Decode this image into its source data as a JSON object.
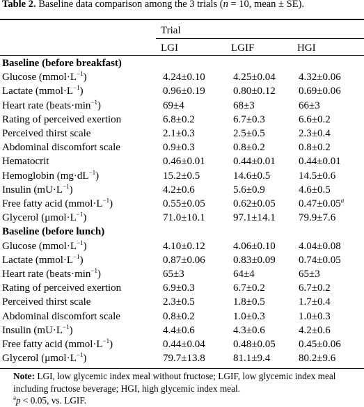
{
  "caption": {
    "label": "Table 2.",
    "text_before_n": " Baseline data comparison among the 3 trials (",
    "n_symbol": "n",
    "text_after_n": " = 10, mean ± SE)."
  },
  "header": {
    "group": "Trial",
    "columns": [
      "LGI",
      "LGIF",
      "HGI"
    ]
  },
  "rows": [
    {
      "label": "Baseline (before breakfast)",
      "section": true,
      "values": [
        "",
        "",
        ""
      ]
    },
    {
      "label": "Glucose (mmol·L",
      "sup": "−1",
      "tail": ")",
      "values": [
        "4.24±0.10",
        "4.25±0.04",
        "4.32±0.06"
      ]
    },
    {
      "label": "Lactate (mmol·L",
      "sup": "−1",
      "tail": ")",
      "values": [
        "0.96±0.19",
        "0.80±0.12",
        "0.69±0.06"
      ]
    },
    {
      "label": "Heart rate (beats·min",
      "sup": "−1",
      "tail": ")",
      "values": [
        "69±4",
        "68±3",
        "66±3"
      ]
    },
    {
      "label": "Rating of perceived exertion",
      "values": [
        "6.8±0.2",
        "6.7±0.3",
        "6.6±0.2"
      ]
    },
    {
      "label": "Perceived thirst scale",
      "values": [
        "2.1±0.3",
        "2.5±0.5",
        "2.3±0.4"
      ]
    },
    {
      "label": "Abdominal discomfort scale",
      "values": [
        "0.9±0.3",
        "0.8±0.2",
        "0.8±0.2"
      ]
    },
    {
      "label": "Hematocrit",
      "values": [
        "0.46±0.01",
        "0.44±0.01",
        "0.44±0.01"
      ]
    },
    {
      "label": "Hemoglobin (mg·dL",
      "sup": "−1",
      "tail": ")",
      "values": [
        "15.2±0.5",
        "14.6±0.5",
        "14.5±0.6"
      ]
    },
    {
      "label": "Insulin (mU·L",
      "sup": "−1",
      "tail": ")",
      "values": [
        "4.2±0.6",
        "5.6±0.9",
        "4.6±0.5"
      ]
    },
    {
      "label": "Free fatty acid (mmol·L",
      "sup": "−1",
      "tail": ")",
      "values": [
        "0.55±0.05",
        "0.62±0.05",
        "0.47±0.05"
      ],
      "value_sup": [
        "",
        "",
        "a"
      ]
    },
    {
      "label": "Glycerol (μmol·L",
      "sup": "−1",
      "tail": ")",
      "values": [
        "71.0±10.1",
        "97.1±14.1",
        "79.9±7.6"
      ]
    },
    {
      "label": "Baseline (before lunch)",
      "section": true,
      "values": [
        "",
        "",
        ""
      ]
    },
    {
      "label": "Glucose (mmol·L",
      "sup": "−1",
      "tail": ")",
      "values": [
        "4.10±0.12",
        "4.06±0.10",
        "4.04±0.08"
      ]
    },
    {
      "label": "Lactate (mmol·L",
      "sup": "−1",
      "tail": ")",
      "values": [
        "0.87±0.06",
        "0.83±0.09",
        "0.74±0.05"
      ]
    },
    {
      "label": "Heart rate (beats·min",
      "sup": "−1",
      "tail": ")",
      "values": [
        "65±3",
        "64±4",
        "65±3"
      ]
    },
    {
      "label": "Rating of perceived exertion",
      "values": [
        "6.9±0.3",
        "6.7±0.2",
        "6.7±0.2"
      ]
    },
    {
      "label": "Perceived thirst scale",
      "values": [
        "2.3±0.5",
        "1.8±0.5",
        "1.7±0.4"
      ]
    },
    {
      "label": "Abdominal discomfort scale",
      "values": [
        "0.8±0.2",
        "1.0±0.3",
        "1.0±0.3"
      ]
    },
    {
      "label": "Insulin (mU·L",
      "sup": "−1",
      "tail": ")",
      "values": [
        "4.4±0.6",
        "4.3±0.6",
        "4.2±0.6"
      ]
    },
    {
      "label": "Free fatty acid (mmol·L",
      "sup": "−1",
      "tail": ")",
      "values": [
        "0.44±0.04",
        "0.48±0.05",
        "0.45±0.06"
      ]
    },
    {
      "label": "Glycerol (μmol·L",
      "sup": "−1",
      "tail": ")",
      "values": [
        "79.7±13.8",
        "81.1±9.4",
        "80.2±9.6"
      ]
    }
  ],
  "note": {
    "label": "Note:",
    "text": " LGI, low glycemic index meal without fructose; LGIF, low glycemic index meal including fructose beverage; HGI, high glycemic index meal.",
    "footnote_sup": "a",
    "footnote_p": "p",
    "footnote_text": " < 0.05, vs. LGIF."
  }
}
